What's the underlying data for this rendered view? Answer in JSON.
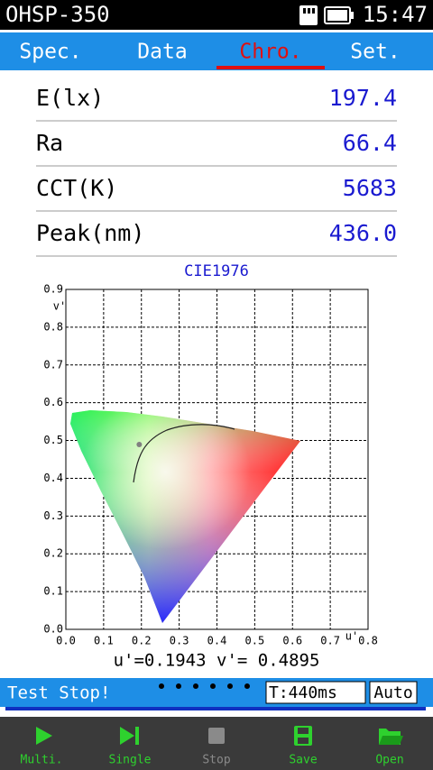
{
  "status_bar": {
    "device": "OHSP-350",
    "time": "15:47"
  },
  "tabs": [
    {
      "label": "Spec."
    },
    {
      "label": "Data"
    },
    {
      "label": "Chro.",
      "active": true
    },
    {
      "label": "Set."
    }
  ],
  "metrics": [
    {
      "label": "E(lx)",
      "value": "197.4"
    },
    {
      "label": "Ra",
      "value": "66.4"
    },
    {
      "label": "CCT(K)",
      "value": "5683"
    },
    {
      "label": "Peak(nm)",
      "value": "436.0"
    }
  ],
  "chart_data": {
    "type": "scatter",
    "title": "CIE1976",
    "x_label": "u'",
    "y_label": "v'",
    "x": [
      0.1943
    ],
    "values": [
      0.4895
    ],
    "value_labels": [
      "u'=0.1943  v'= 0.4895"
    ],
    "color": "#808080",
    "xlim": [
      0,
      0.8
    ],
    "ylim": [
      0,
      0.9
    ],
    "xticks": [
      {
        "value": 0,
        "label": "0.0"
      },
      0.1,
      0.2,
      0.3,
      0.4,
      0.5,
      0.6,
      0.7,
      0.8
    ],
    "yticks": [
      {
        "value": 0,
        "label": "0.0"
      },
      0.1,
      0.2,
      0.3,
      0.4,
      0.5,
      0.6,
      0.7,
      0.8,
      0.9
    ],
    "grid": true
  },
  "status_line": {
    "message": "Test Stop!",
    "time": "T:440ms",
    "mode": "Auto"
  },
  "toolbar": [
    {
      "label": "Multi."
    },
    {
      "label": "Single"
    },
    {
      "label": "Stop"
    },
    {
      "label": "Save"
    },
    {
      "label": "Open"
    }
  ]
}
